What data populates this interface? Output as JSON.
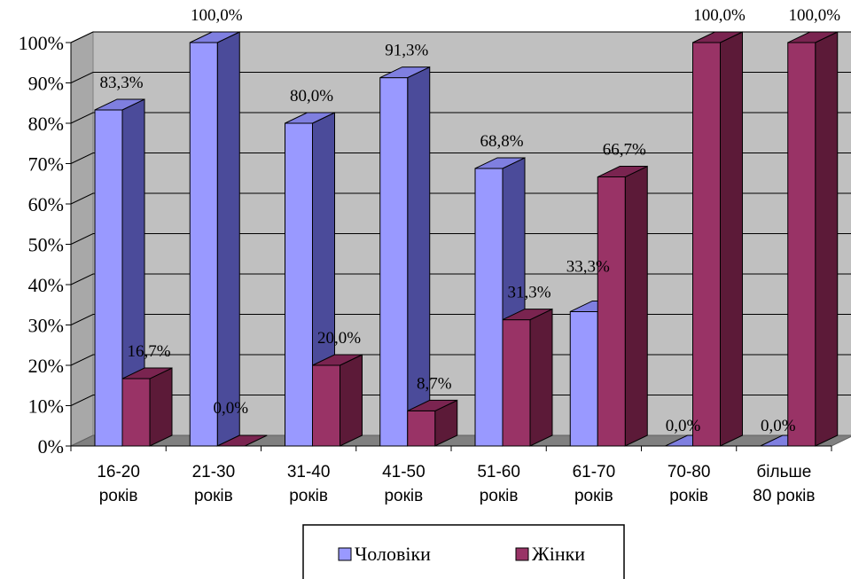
{
  "chart_data": {
    "type": "bar",
    "categories": [
      [
        "16-20",
        "років"
      ],
      [
        "21-30",
        "років"
      ],
      [
        "31-40",
        "років"
      ],
      [
        "41-50",
        "років"
      ],
      [
        "51-60",
        "років"
      ],
      [
        "61-70",
        "років"
      ],
      [
        "70-80",
        "років"
      ],
      [
        "більше",
        "80 років"
      ]
    ],
    "series": [
      {
        "name": "Чоловіки",
        "values": [
          83.3,
          100.0,
          80.0,
          91.3,
          68.8,
          33.3,
          0.0,
          0.0
        ],
        "labels": [
          "83,3%",
          "100,0%",
          "80,0%",
          "91,3%",
          "68,8%",
          "33,3%",
          "0,0%",
          "0,0%"
        ],
        "color": "#9999ff",
        "side_color": "#4b4b9a",
        "top_color": "#7f7fe0"
      },
      {
        "name": "Жінки",
        "values": [
          16.7,
          0.0,
          20.0,
          8.7,
          31.3,
          66.7,
          100.0,
          100.0
        ],
        "labels": [
          "16,7%",
          "0,0%",
          "20,0%",
          "8,7%",
          "31,3%",
          "66,7%",
          "100,0%",
          "100,0%"
        ],
        "color": "#993366",
        "side_color": "#5c1a38",
        "top_color": "#7a2450"
      }
    ],
    "yticks": [
      "0%",
      "10%",
      "20%",
      "30%",
      "40%",
      "50%",
      "60%",
      "70%",
      "80%",
      "90%",
      "100%"
    ],
    "ylim": [
      0,
      100
    ],
    "grid": true,
    "legend_position": "bottom",
    "wall_color": "#c0c0c0",
    "floor_color": "#808080"
  }
}
